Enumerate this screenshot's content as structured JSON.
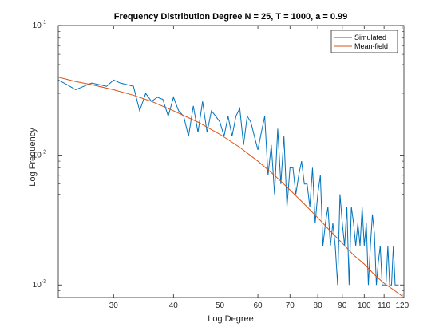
{
  "chart_data": {
    "type": "line",
    "title": "Frequency Distribution Degree N = 25, T = 1000, a = 0.99",
    "xlabel": "Log Degree",
    "ylabel": "Log Frequency",
    "xscale": "log",
    "yscale": "log",
    "xlim": [
      23,
      121
    ],
    "ylim": [
      0.0008,
      0.1
    ],
    "xticks": [
      30,
      40,
      50,
      60,
      70,
      80,
      90,
      100,
      110,
      120
    ],
    "xtick_labels": [
      "30",
      "40",
      "50",
      "60",
      "70",
      "80",
      "90",
      "100",
      "110",
      "120"
    ],
    "yticks": [
      0.001,
      0.01,
      0.1
    ],
    "ytick_labels": [
      {
        "base": "10",
        "exp": "-3"
      },
      {
        "base": "10",
        "exp": "-2"
      },
      {
        "base": "10",
        "exp": "-1"
      }
    ],
    "legend": "top-right",
    "grid": false,
    "series": [
      {
        "name": "Simulated",
        "color": "#0072BD",
        "x": [
          23,
          24,
          25,
          26,
          27,
          28,
          29,
          30,
          31,
          32,
          33,
          34,
          35,
          36,
          37,
          38,
          39,
          40,
          41,
          42,
          43,
          44,
          45,
          46,
          47,
          48,
          49,
          50,
          51,
          52,
          53,
          54,
          55,
          56,
          57,
          58,
          59,
          60,
          61,
          62,
          63,
          64,
          65,
          66,
          67,
          68,
          69,
          70,
          71,
          72,
          73,
          74,
          75,
          76,
          77,
          78,
          79,
          80,
          81,
          82,
          83,
          84,
          85,
          86,
          87,
          88,
          89,
          90,
          91,
          92,
          93,
          94,
          95,
          96,
          97,
          98,
          99,
          100,
          101,
          102,
          103,
          104,
          105,
          106,
          107,
          108,
          109,
          110,
          111,
          112,
          113,
          114,
          115,
          116,
          117,
          118
        ],
        "y": [
          0.038,
          0.035,
          0.032,
          0.034,
          0.036,
          0.035,
          0.034,
          0.038,
          0.036,
          0.035,
          0.034,
          0.022,
          0.03,
          0.026,
          0.028,
          0.027,
          0.02,
          0.028,
          0.022,
          0.02,
          0.014,
          0.024,
          0.015,
          0.026,
          0.015,
          0.022,
          0.02,
          0.018,
          0.014,
          0.02,
          0.014,
          0.02,
          0.023,
          0.012,
          0.02,
          0.018,
          0.014,
          0.011,
          0.015,
          0.02,
          0.007,
          0.012,
          0.005,
          0.016,
          0.006,
          0.014,
          0.004,
          0.008,
          0.008,
          0.005,
          0.007,
          0.009,
          0.006,
          0.006,
          0.004,
          0.008,
          0.003,
          0.005,
          0.007,
          0.002,
          0.003,
          0.004,
          0.002,
          0.003,
          0.002,
          0.001,
          0.005,
          0.003,
          0.002,
          0.004,
          0.001,
          0.004,
          0.003,
          0.002,
          0.003,
          0.002,
          0.004,
          0.002,
          0.003,
          0.001,
          0.002,
          0.0035,
          0.0025,
          0.001,
          0.0015,
          0.002,
          0.001,
          0.001,
          0.001,
          0.002,
          0.001,
          0.001,
          0.002,
          0.001,
          0.001,
          0.001
        ],
        "_note": ""
      },
      {
        "name": "Mean-field",
        "color": "#D95319",
        "x": [
          23,
          25,
          27,
          30,
          33,
          36,
          40,
          45,
          50,
          55,
          60,
          65,
          70,
          75,
          80,
          85,
          90,
          95,
          100,
          105,
          110,
          115,
          120
        ],
        "y": [
          0.04,
          0.037,
          0.035,
          0.032,
          0.029,
          0.026,
          0.022,
          0.018,
          0.0145,
          0.0115,
          0.009,
          0.007,
          0.0054,
          0.0042,
          0.0033,
          0.0026,
          0.0021,
          0.0017,
          0.00145,
          0.0012,
          0.00103,
          0.00092,
          0.00082
        ]
      }
    ]
  }
}
